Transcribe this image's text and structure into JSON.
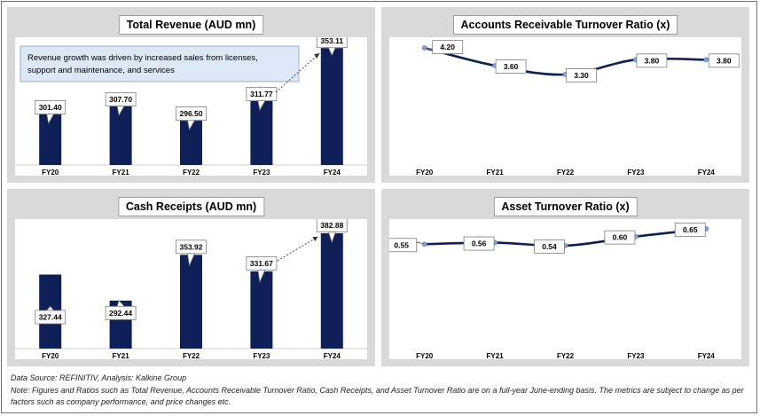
{
  "chart_data": [
    {
      "type": "bar",
      "title": "Total Revenue (AUD mn)",
      "categories": [
        "FY20",
        "FY21",
        "FY22",
        "FY23",
        "FY24"
      ],
      "values": [
        301.4,
        307.7,
        296.5,
        311.77,
        353.11
      ],
      "value_labels": [
        "301.40",
        "307.70",
        "296.50",
        "311.77",
        "353.11"
      ],
      "annotation": "Revenue growth was driven by increased sales from licenses, support and maintenance, and services",
      "bar_color": "#0f1f57"
    },
    {
      "type": "line",
      "title": "Accounts Receivable Turnover Ratio (x)",
      "categories": [
        "FY20",
        "FY21",
        "FY22",
        "FY23",
        "FY24"
      ],
      "values": [
        4.2,
        3.6,
        3.3,
        3.8,
        3.8
      ],
      "value_labels": [
        "4.20",
        "3.60",
        "3.30",
        "3.80",
        "3.80"
      ],
      "line_color": "#0f1f57"
    },
    {
      "type": "bar",
      "title": "Cash Receipts (AUD mn)",
      "categories": [
        "FY20",
        "FY21",
        "FY22",
        "FY23",
        "FY24"
      ],
      "values": [
        327.44,
        292.44,
        353.92,
        331.67,
        382.88
      ],
      "value_labels": [
        "327.44",
        "292.44",
        "353.92",
        "331.67",
        "382.88"
      ],
      "bar_color": "#0f1f57"
    },
    {
      "type": "line",
      "title": "Asset Turnover Ratio (x)",
      "categories": [
        "FY20",
        "FY21",
        "FY22",
        "FY23",
        "FY24"
      ],
      "values": [
        0.55,
        0.56,
        0.54,
        0.6,
        0.65
      ],
      "value_labels": [
        "0.55",
        "0.56",
        "0.54",
        "0.60",
        "0.65"
      ],
      "line_color": "#0f1f57"
    }
  ],
  "footer": {
    "source": "Data Source: REFINITIV, Analysis: Kalkine Group",
    "note_line1": "Note: Figures and Ratios such as Total Revenue, Accounts Receivable Turnover Ratio, Cash Receipts, and Asset Turnover Ratio are on a full-year June-ending basis. The metrics are subject to change as per",
    "note_line2": "factors such as company performance, and price changes etc."
  }
}
